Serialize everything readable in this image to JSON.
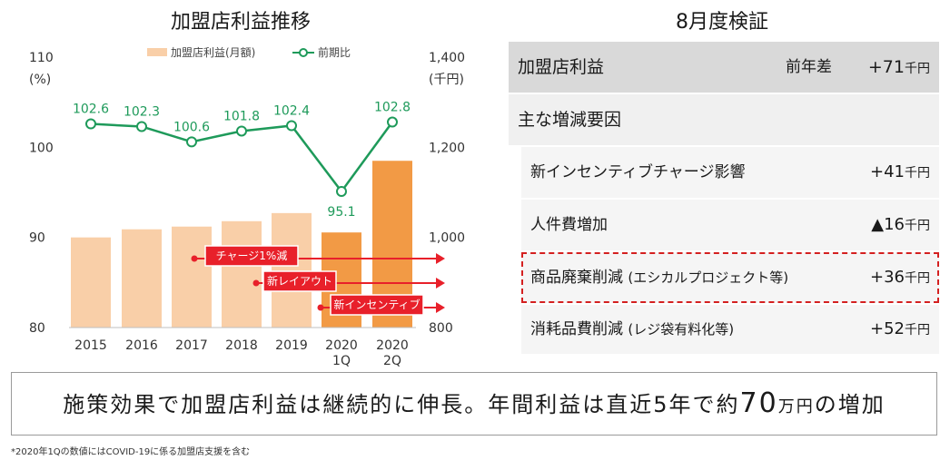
{
  "left_panel": {
    "title": "加盟店利益推移",
    "left_axis_ticks": [
      "110",
      "100",
      "90",
      "80"
    ],
    "left_axis_unit": "(%)",
    "right_axis_ticks": [
      "1,400",
      "1,200",
      "1,000",
      "800"
    ],
    "right_axis_unit": "(千円)",
    "annotations": [
      "チャージ1%減",
      "新レイアウト",
      "新インセンティブ"
    ]
  },
  "chart_data": {
    "type": "bar+line",
    "categories": [
      "2015",
      "2016",
      "2017",
      "2018",
      "2019",
      "2020\n1Q",
      "2020\n2Q"
    ],
    "category_lines": [
      [
        "2015"
      ],
      [
        "2016"
      ],
      [
        "2017"
      ],
      [
        "2018"
      ],
      [
        "2019"
      ],
      [
        "2020",
        "1Q"
      ],
      [
        "2020",
        "2Q"
      ]
    ],
    "bar_series": {
      "name": "加盟店利益(月額)",
      "axis": "right",
      "ylim": [
        800,
        1400
      ],
      "values": [
        1000,
        1018,
        1024,
        1036,
        1054,
        1011,
        1170
      ],
      "colors": [
        "#f9cfa8",
        "#f9cfa8",
        "#f9cfa8",
        "#f9cfa8",
        "#f9cfa8",
        "#f29a45",
        "#f29a45"
      ]
    },
    "line_series": {
      "name": "前期比",
      "axis": "left",
      "ylim": [
        80,
        110
      ],
      "values": [
        102.6,
        102.3,
        100.6,
        101.8,
        102.4,
        95.1,
        102.8
      ],
      "labels": [
        "102.6",
        "102.3",
        "100.6",
        "101.8",
        "102.4",
        "95.1",
        "102.8"
      ],
      "color": "#1e9a5a"
    },
    "legend_position": "top"
  },
  "right_panel": {
    "title": "8月度検証",
    "header": {
      "label": "加盟店利益",
      "sub": "前年差",
      "value": "+71",
      "unit": "千円"
    },
    "section": {
      "label": "主な増減要因"
    },
    "rows": [
      {
        "label": "新インセンティブチャージ影響",
        "paren": "",
        "value": "+41",
        "unit": "千円",
        "highlight": false
      },
      {
        "label": "人件費増加",
        "paren": "",
        "value": "▲16",
        "unit": "千円",
        "highlight": false
      },
      {
        "label": "商品廃棄削減",
        "paren": "(エシカルプロジェクト等)",
        "value": "+36",
        "unit": "千円",
        "highlight": true
      },
      {
        "label": "消耗品費削減",
        "paren": "(レジ袋有料化等)",
        "value": "+52",
        "unit": "千円",
        "highlight": false
      }
    ]
  },
  "summary": {
    "text_a": "施策効果で加盟店利益は継続的に伸長。年間利益は直近5年で約",
    "number": "70",
    "unit": "万円",
    "text_b": "の増加"
  },
  "footnote": "*2020年1Qの数値にはCOVID-19に係る加盟店支援を含む"
}
